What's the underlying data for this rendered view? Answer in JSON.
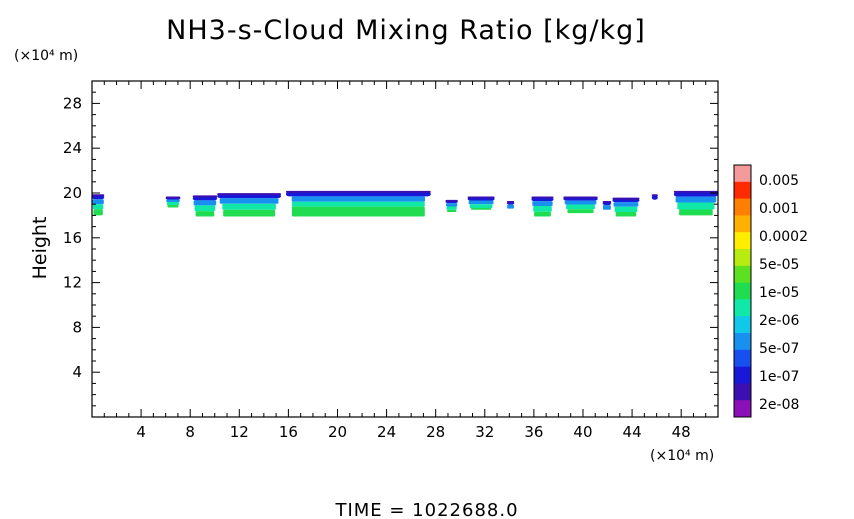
{
  "chart_data": {
    "type": "heatmap",
    "title": "NH3-s-Cloud Mixing Ratio [kg/kg]",
    "ylabel": "Height",
    "xunit": "(×10⁴ m)",
    "yunit": "(×10⁴ m)",
    "xlim": [
      0,
      51
    ],
    "ylim": [
      0,
      30
    ],
    "xticks": [
      "4",
      "8",
      "12",
      "16",
      "20",
      "24",
      "28",
      "32",
      "36",
      "40",
      "44",
      "48"
    ],
    "yticks": [
      "4",
      "8",
      "12",
      "16",
      "20",
      "24",
      "28"
    ],
    "colorbar": {
      "labels": [
        "0.005",
        "0.001",
        "0.0002",
        "5e-05",
        "1e-05",
        "2e-06",
        "5e-07",
        "1e-07",
        "2e-08"
      ],
      "colors": [
        "#f59a9a",
        "#ff2a00",
        "#ff7f00",
        "#ffb000",
        "#ffee00",
        "#b8ec10",
        "#5de020",
        "#20dc50",
        "#10e8a8",
        "#10c8e8",
        "#1890f0",
        "#1850f0",
        "#1818d8",
        "#3a10b0",
        "#8a10b8"
      ]
    },
    "clouds": [
      {
        "x0": 0,
        "x1": 1.0,
        "top": 19.8,
        "bottom": 18.0,
        "levels": [
          0.2,
          0.25,
          0.25,
          0.3
        ]
      },
      {
        "x0": 6.0,
        "x1": 7.2,
        "top": 19.6,
        "bottom": 18.7,
        "levels": [
          0.2,
          0.25,
          0.3,
          0.25
        ]
      },
      {
        "x0": 8.2,
        "x1": 10.2,
        "top": 19.7,
        "bottom": 17.9,
        "levels": [
          0.2,
          0.25,
          0.28,
          0.27
        ]
      },
      {
        "x0": 10.2,
        "x1": 15.4,
        "top": 19.9,
        "bottom": 17.9,
        "levels": [
          0.18,
          0.25,
          0.27,
          0.3
        ]
      },
      {
        "x0": 15.8,
        "x1": 27.6,
        "top": 20.1,
        "bottom": 17.9,
        "levels": [
          0.18,
          0.22,
          0.2,
          0.4
        ]
      },
      {
        "x0": 28.8,
        "x1": 29.8,
        "top": 19.3,
        "bottom": 18.3,
        "levels": [
          0.2,
          0.3,
          0.3,
          0.2
        ]
      },
      {
        "x0": 30.6,
        "x1": 32.8,
        "top": 19.6,
        "bottom": 18.5,
        "levels": [
          0.25,
          0.3,
          0.3,
          0.15
        ]
      },
      {
        "x0": 33.8,
        "x1": 34.4,
        "top": 19.2,
        "bottom": 18.6,
        "levels": [
          0.4,
          0.6,
          0,
          0
        ]
      },
      {
        "x0": 35.8,
        "x1": 37.6,
        "top": 19.6,
        "bottom": 17.9,
        "levels": [
          0.2,
          0.25,
          0.3,
          0.25
        ]
      },
      {
        "x0": 38.4,
        "x1": 41.2,
        "top": 19.6,
        "bottom": 18.2,
        "levels": [
          0.2,
          0.25,
          0.3,
          0.25
        ]
      },
      {
        "x0": 41.6,
        "x1": 42.3,
        "top": 19.2,
        "bottom": 18.5,
        "levels": [
          0.4,
          0.6,
          0,
          0
        ]
      },
      {
        "x0": 42.4,
        "x1": 44.6,
        "top": 19.5,
        "bottom": 17.9,
        "levels": [
          0.2,
          0.25,
          0.3,
          0.25
        ]
      },
      {
        "x0": 45.6,
        "x1": 46.1,
        "top": 19.8,
        "bottom": 19.4,
        "levels": [
          1,
          0,
          0,
          0
        ]
      },
      {
        "x0": 47.4,
        "x1": 51.0,
        "top": 20.1,
        "bottom": 18.0,
        "levels": [
          0.2,
          0.25,
          0.3,
          0.25
        ]
      }
    ]
  },
  "footer": {
    "time_text": "TIME = 1022688.0"
  }
}
